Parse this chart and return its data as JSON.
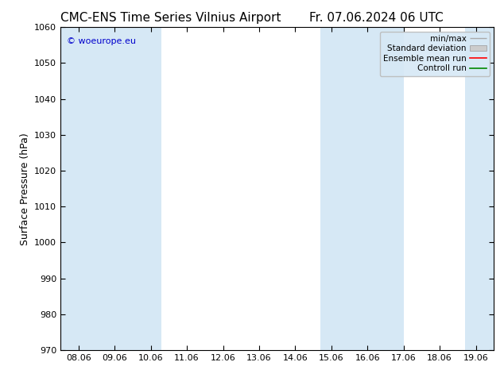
{
  "title_left": "CMC-ENS Time Series Vilnius Airport",
  "title_right": "Fr. 07.06.2024 06 UTC",
  "ylabel": "Surface Pressure (hPa)",
  "ylim": [
    970,
    1060
  ],
  "yticks": [
    970,
    980,
    990,
    1000,
    1010,
    1020,
    1030,
    1040,
    1050,
    1060
  ],
  "xtick_labels": [
    "08.06",
    "09.06",
    "10.06",
    "11.06",
    "12.06",
    "13.06",
    "14.06",
    "15.06",
    "16.06",
    "17.06",
    "18.06",
    "19.06"
  ],
  "band_color": "#d6e8f5",
  "background_color": "#ffffff",
  "watermark_text": "© woeurope.eu",
  "watermark_color": "#0000cc",
  "legend_entries": [
    "min/max",
    "Standard deviation",
    "Ensemble mean run",
    "Controll run"
  ],
  "legend_colors": [
    "#aaaaaa",
    "#cccccc",
    "#ff0000",
    "#008800"
  ],
  "title_fontsize": 11,
  "axis_label_fontsize": 9,
  "tick_fontsize": 8
}
